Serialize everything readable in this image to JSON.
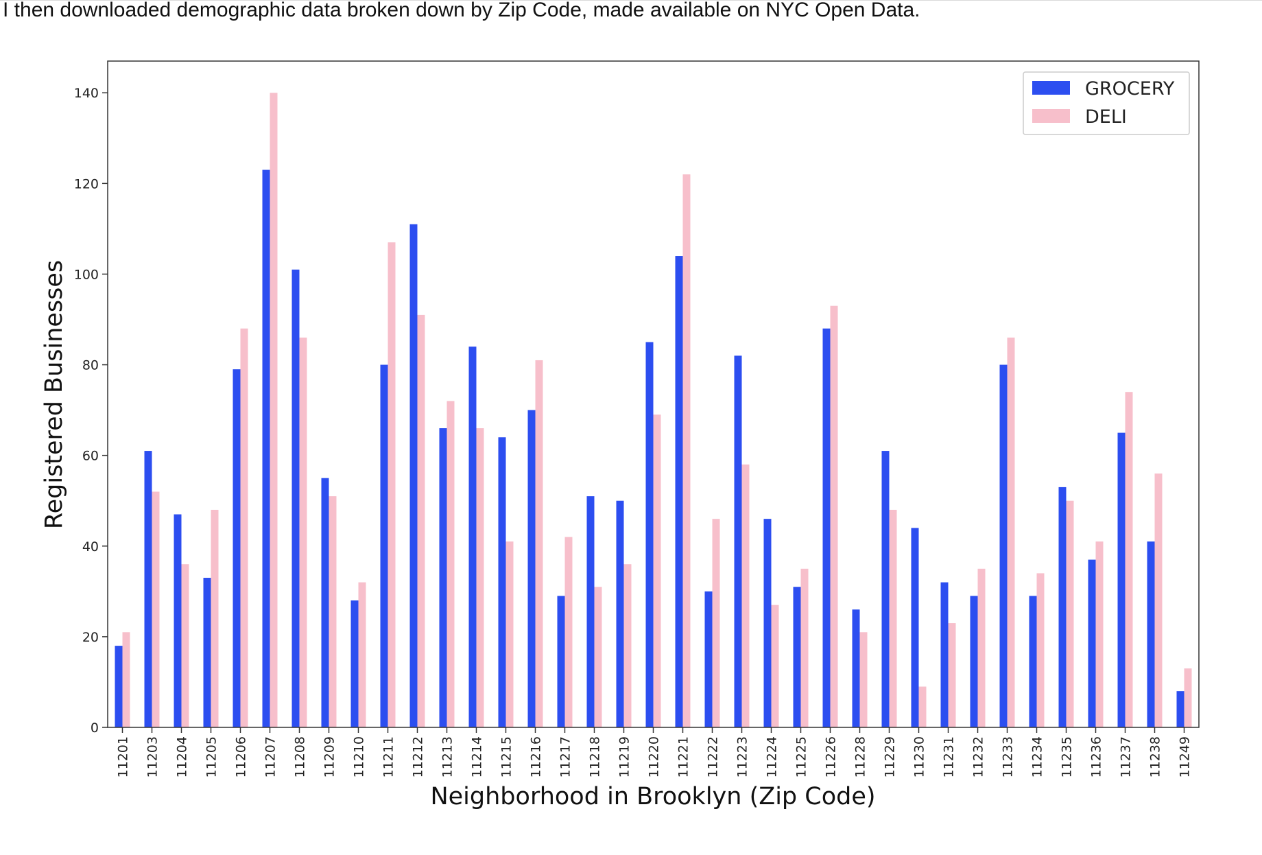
{
  "intro_text": "I then downloaded demographic data broken down by Zip Code, made available on NYC Open Data.",
  "colors": {
    "grocery": "#2c4ef0",
    "deli": "#f7bfcb"
  },
  "chart_data": {
    "type": "bar",
    "title": "",
    "xlabel": "Neighborhood in Brooklyn (Zip Code)",
    "ylabel": "Registered Businesses",
    "ylim": [
      0,
      147
    ],
    "yticks": [
      0,
      20,
      40,
      60,
      80,
      100,
      120,
      140
    ],
    "grid": false,
    "legend": "top-right",
    "categories": [
      "11201",
      "11203",
      "11204",
      "11205",
      "11206",
      "11207",
      "11208",
      "11209",
      "11210",
      "11211",
      "11212",
      "11213",
      "11214",
      "11215",
      "11216",
      "11217",
      "11218",
      "11219",
      "11220",
      "11221",
      "11222",
      "11223",
      "11224",
      "11225",
      "11226",
      "11228",
      "11229",
      "11230",
      "11231",
      "11232",
      "11233",
      "11234",
      "11235",
      "11236",
      "11237",
      "11238",
      "11249"
    ],
    "series": [
      {
        "name": "GROCERY",
        "values": [
          18,
          61,
          47,
          33,
          79,
          123,
          101,
          55,
          28,
          80,
          111,
          66,
          84,
          64,
          70,
          29,
          51,
          50,
          85,
          104,
          30,
          82,
          46,
          31,
          88,
          26,
          61,
          44,
          32,
          29,
          80,
          29,
          53,
          37,
          65,
          41,
          8
        ]
      },
      {
        "name": "DELI",
        "values": [
          21,
          52,
          36,
          48,
          88,
          140,
          86,
          51,
          32,
          107,
          91,
          72,
          66,
          41,
          81,
          42,
          31,
          36,
          69,
          122,
          46,
          58,
          27,
          35,
          93,
          21,
          48,
          9,
          23,
          35,
          86,
          34,
          50,
          41,
          74,
          56,
          13
        ]
      }
    ]
  }
}
